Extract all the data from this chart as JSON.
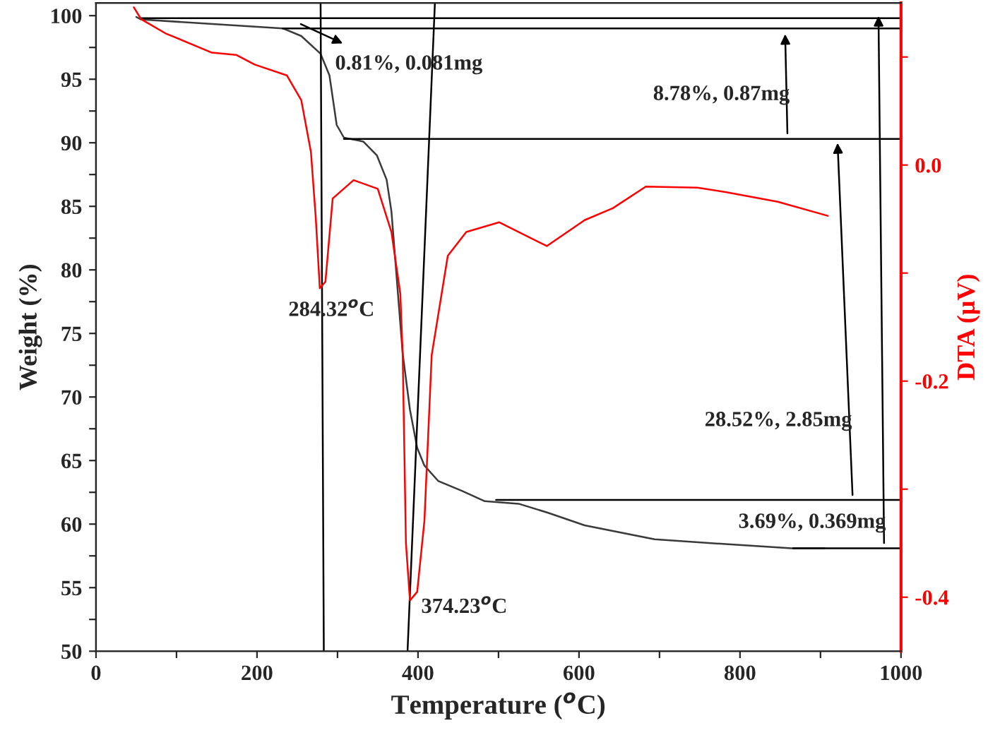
{
  "chart_data": {
    "type": "line",
    "xlabel": "Temperature ($^{o}$C)",
    "ylabel": "Weight (%)",
    "y2label": "DTA (μV)",
    "xlim": [
      0,
      1000
    ],
    "xticks": [
      0,
      {
        "value": 100,
        "label": null
      },
      200,
      {
        "value": 300,
        "label": null
      },
      400,
      {
        "value": 500,
        "label": null
      },
      600,
      {
        "value": 700,
        "label": null
      },
      800,
      {
        "value": 900,
        "label": null
      },
      1000
    ],
    "ylim": [
      50,
      101
    ],
    "yticks": [
      50,
      {
        "value": 52.5,
        "label": null
      },
      55,
      {
        "value": 57.5,
        "label": null
      },
      60,
      {
        "value": 62.5,
        "label": null
      },
      65,
      {
        "value": 67.5,
        "label": null
      },
      70,
      {
        "value": 72.5,
        "label": null
      },
      75,
      {
        "value": 77.5,
        "label": null
      },
      80,
      {
        "value": 82.5,
        "label": null
      },
      85,
      {
        "value": 87.5,
        "label": null
      },
      90,
      {
        "value": 92.5,
        "label": null
      },
      95,
      {
        "value": 97.5,
        "label": null
      },
      100
    ],
    "y2lim": [
      -0.45,
      0.15
    ],
    "y2ticks": [
      -0.4,
      {
        "value": -0.3,
        "label": null
      },
      -0.2,
      {
        "value": -0.1,
        "label": null
      },
      {
        "value": 0.0,
        "label": "0.0"
      },
      {
        "value": 0.1,
        "label": null
      }
    ],
    "series": [
      {
        "color": "#3a3a3a",
        "x": [
          50,
          56,
          232,
          255,
          279,
          290,
          299,
          308,
          332,
          349,
          361,
          367,
          381,
          390,
          399,
          408,
          425,
          455,
          483,
          525,
          561,
          607,
          694,
          789,
          864,
          905
        ],
        "values": [
          99.9,
          99.7,
          99.0,
          98.4,
          97.0,
          95.3,
          91.4,
          90.4,
          90.1,
          89.0,
          87.1,
          84.6,
          73.4,
          69.0,
          66.0,
          64.6,
          63.4,
          62.6,
          61.8,
          61.6,
          60.9,
          59.9,
          58.8,
          58.4,
          58.1,
          58.1
        ]
      },
      {
        "color": "#ff0000",
        "axis": "y2",
        "x": [
          47,
          56,
          86,
          144,
          174,
          197,
          237,
          255,
          267,
          273,
          278,
          285,
          294,
          320,
          350,
          367,
          378,
          381,
          385,
          390,
          399,
          408,
          417,
          437,
          460,
          501,
          560,
          607,
          642,
          683,
          747,
          782,
          847,
          909
        ],
        "values": [
          0.146,
          0.135,
          0.122,
          0.104,
          0.102,
          0.093,
          0.083,
          0.06,
          0.012,
          -0.049,
          -0.114,
          -0.108,
          -0.031,
          -0.014,
          -0.022,
          -0.062,
          -0.119,
          -0.176,
          -0.35,
          -0.403,
          -0.395,
          -0.329,
          -0.176,
          -0.084,
          -0.062,
          -0.053,
          -0.075,
          -0.051,
          -0.04,
          -0.02,
          -0.021,
          -0.025,
          -0.034,
          -0.047
        ]
      },
      {
        "color": "#000000",
        "x": [
          56,
          1000
        ],
        "values": [
          99.8,
          99.8
        ]
      },
      {
        "color": "#000000",
        "x": [
          232,
          1000
        ],
        "values": [
          99.0,
          99.0
        ]
      },
      {
        "color": "#000000",
        "x": [
          308,
          1000
        ],
        "values": [
          90.3,
          90.3
        ]
      },
      {
        "color": "#000000",
        "x": [
          497,
          1000
        ],
        "values": [
          61.9,
          61.9
        ]
      },
      {
        "color": "#000000",
        "x": [
          866,
          1000
        ],
        "values": [
          58.1,
          58.1
        ]
      },
      {
        "color": "#000000",
        "x": [
          279,
          283
        ],
        "values": [
          101,
          50
        ]
      },
      {
        "color": "#000000",
        "x": [
          421,
          387
        ],
        "values": [
          101,
          50
        ]
      }
    ],
    "annotations": [
      "0.81%, 0.081mg",
      "8.78%, 0.87mg",
      "28.52%, 2.85mg",
      "3.69%, 0.369mg",
      "284.32$^{o}$C",
      "374.23$^{o}$C"
    ]
  }
}
